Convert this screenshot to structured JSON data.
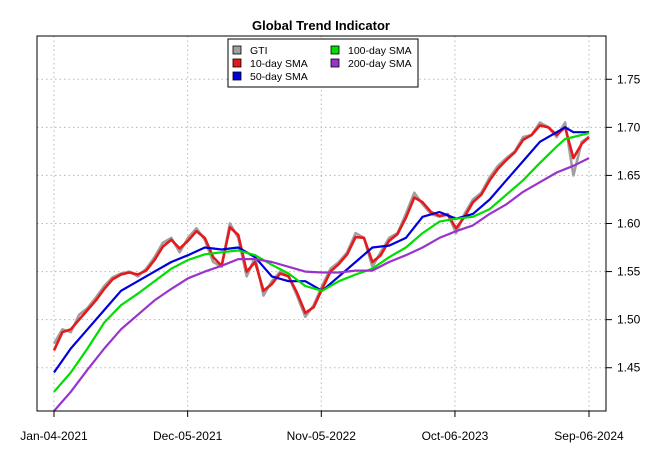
{
  "chart_data": {
    "type": "line",
    "title": "Global Trend Indicator",
    "xlabel": "",
    "ylabel": "",
    "x_ticks": [
      "Jan-04-2021",
      "Dec-05-2021",
      "Nov-05-2022",
      "Oct-06-2023",
      "Sep-06-2024"
    ],
    "x_range": [
      "Jan-04-2021",
      "Sep-06-2024"
    ],
    "y_ticks": [
      1.45,
      1.5,
      1.55,
      1.6,
      1.65,
      1.7,
      1.75
    ],
    "y_tick_labels": [
      "1.45",
      "1.50",
      "1.55",
      "1.60",
      "1.65",
      "1.70",
      "1.75"
    ],
    "ylim": [
      1.405,
      1.795
    ],
    "grid": true,
    "legend_position": "top-center",
    "series": [
      {
        "name": "GTI",
        "color": "#a0a0a0",
        "points": [
          [
            "Jan-04-2021",
            1.475
          ],
          [
            "Jan-25-2021",
            1.49
          ],
          [
            "Feb-15-2021",
            1.487
          ],
          [
            "Mar-08-2021",
            1.505
          ],
          [
            "Mar-29-2021",
            1.512
          ],
          [
            "Apr-19-2021",
            1.523
          ],
          [
            "May-10-2021",
            1.535
          ],
          [
            "May-31-2021",
            1.544
          ],
          [
            "Jun-21-2021",
            1.548
          ],
          [
            "Jul-12-2021",
            1.55
          ],
          [
            "Aug-02-2021",
            1.545
          ],
          [
            "Aug-23-2021",
            1.553
          ],
          [
            "Sep-13-2021",
            1.565
          ],
          [
            "Oct-04-2021",
            1.58
          ],
          [
            "Oct-25-2021",
            1.585
          ],
          [
            "Nov-15-2021",
            1.57
          ],
          [
            "Dec-06-2021",
            1.585
          ],
          [
            "Dec-27-2021",
            1.595
          ],
          [
            "Jan-17-2022",
            1.583
          ],
          [
            "Feb-07-2022",
            1.56
          ],
          [
            "Feb-28-2022",
            1.555
          ],
          [
            "Mar-21-2022",
            1.6
          ],
          [
            "Apr-11-2022",
            1.585
          ],
          [
            "May-02-2022",
            1.545
          ],
          [
            "May-23-2022",
            1.565
          ],
          [
            "Jun-13-2022",
            1.525
          ],
          [
            "Jul-04-2022",
            1.54
          ],
          [
            "Jul-25-2022",
            1.55
          ],
          [
            "Aug-15-2022",
            1.545
          ],
          [
            "Sep-05-2022",
            1.525
          ],
          [
            "Sep-26-2022",
            1.503
          ],
          [
            "Oct-17-2022",
            1.515
          ],
          [
            "Nov-07-2022",
            1.535
          ],
          [
            "Nov-28-2022",
            1.553
          ],
          [
            "Dec-19-2022",
            1.56
          ],
          [
            "Jan-09-2023",
            1.57
          ],
          [
            "Jan-30-2023",
            1.59
          ],
          [
            "Feb-20-2023",
            1.585
          ],
          [
            "Mar-13-2023",
            1.555
          ],
          [
            "Apr-03-2023",
            1.57
          ],
          [
            "Apr-24-2023",
            1.585
          ],
          [
            "May-15-2023",
            1.59
          ],
          [
            "Jun-05-2023",
            1.61
          ],
          [
            "Jun-26-2023",
            1.632
          ],
          [
            "Jul-17-2023",
            1.62
          ],
          [
            "Aug-07-2023",
            1.61
          ],
          [
            "Aug-28-2023",
            1.607
          ],
          [
            "Sep-18-2023",
            1.61
          ],
          [
            "Oct-09-2023",
            1.59
          ],
          [
            "Oct-30-2023",
            1.61
          ],
          [
            "Nov-20-2023",
            1.625
          ],
          [
            "Dec-11-2023",
            1.632
          ],
          [
            "Jan-01-2024",
            1.648
          ],
          [
            "Jan-22-2024",
            1.66
          ],
          [
            "Feb-12-2024",
            1.668
          ],
          [
            "Mar-04-2024",
            1.675
          ],
          [
            "Mar-25-2024",
            1.69
          ],
          [
            "Apr-15-2024",
            1.692
          ],
          [
            "May-06-2024",
            1.705
          ],
          [
            "May-27-2024",
            1.7
          ],
          [
            "Jun-17-2024",
            1.69
          ],
          [
            "Jul-08-2024",
            1.705
          ],
          [
            "Jul-29-2024",
            1.65
          ],
          [
            "Aug-19-2024",
            1.685
          ],
          [
            "Sep-06-2024",
            1.69
          ]
        ]
      },
      {
        "name": "10-day SMA",
        "color": "#e41a1c",
        "points": [
          [
            "Jan-04-2021",
            1.468
          ],
          [
            "Jan-25-2021",
            1.487
          ],
          [
            "Feb-15-2021",
            1.49
          ],
          [
            "Mar-08-2021",
            1.5
          ],
          [
            "Mar-29-2021",
            1.51
          ],
          [
            "Apr-19-2021",
            1.52
          ],
          [
            "May-10-2021",
            1.532
          ],
          [
            "May-31-2021",
            1.542
          ],
          [
            "Jun-21-2021",
            1.547
          ],
          [
            "Jul-12-2021",
            1.549
          ],
          [
            "Aug-02-2021",
            1.547
          ],
          [
            "Aug-23-2021",
            1.551
          ],
          [
            "Sep-13-2021",
            1.562
          ],
          [
            "Oct-04-2021",
            1.576
          ],
          [
            "Oct-25-2021",
            1.583
          ],
          [
            "Nov-15-2021",
            1.574
          ],
          [
            "Dec-06-2021",
            1.582
          ],
          [
            "Dec-27-2021",
            1.592
          ],
          [
            "Jan-17-2022",
            1.585
          ],
          [
            "Feb-07-2022",
            1.565
          ],
          [
            "Feb-28-2022",
            1.556
          ],
          [
            "Mar-21-2022",
            1.596
          ],
          [
            "Apr-11-2022",
            1.588
          ],
          [
            "May-02-2022",
            1.55
          ],
          [
            "May-23-2022",
            1.56
          ],
          [
            "Jun-13-2022",
            1.53
          ],
          [
            "Jul-04-2022",
            1.537
          ],
          [
            "Jul-25-2022",
            1.548
          ],
          [
            "Aug-15-2022",
            1.545
          ],
          [
            "Sep-05-2022",
            1.528
          ],
          [
            "Sep-26-2022",
            1.507
          ],
          [
            "Oct-17-2022",
            1.513
          ],
          [
            "Nov-07-2022",
            1.532
          ],
          [
            "Nov-28-2022",
            1.55
          ],
          [
            "Dec-19-2022",
            1.558
          ],
          [
            "Jan-09-2023",
            1.568
          ],
          [
            "Jan-30-2023",
            1.586
          ],
          [
            "Feb-20-2023",
            1.585
          ],
          [
            "Mar-13-2023",
            1.56
          ],
          [
            "Apr-03-2023",
            1.567
          ],
          [
            "Apr-24-2023",
            1.582
          ],
          [
            "May-15-2023",
            1.589
          ],
          [
            "Jun-05-2023",
            1.606
          ],
          [
            "Jun-26-2023",
            1.627
          ],
          [
            "Jul-17-2023",
            1.622
          ],
          [
            "Aug-07-2023",
            1.612
          ],
          [
            "Aug-28-2023",
            1.608
          ],
          [
            "Sep-18-2023",
            1.609
          ],
          [
            "Oct-09-2023",
            1.595
          ],
          [
            "Oct-30-2023",
            1.607
          ],
          [
            "Nov-20-2023",
            1.622
          ],
          [
            "Dec-11-2023",
            1.63
          ],
          [
            "Jan-01-2024",
            1.645
          ],
          [
            "Jan-22-2024",
            1.657
          ],
          [
            "Feb-12-2024",
            1.666
          ],
          [
            "Mar-04-2024",
            1.674
          ],
          [
            "Mar-25-2024",
            1.687
          ],
          [
            "Apr-15-2024",
            1.692
          ],
          [
            "May-06-2024",
            1.702
          ],
          [
            "May-27-2024",
            1.7
          ],
          [
            "Jun-17-2024",
            1.692
          ],
          [
            "Jul-08-2024",
            1.7
          ],
          [
            "Jul-29-2024",
            1.668
          ],
          [
            "Aug-19-2024",
            1.683
          ],
          [
            "Sep-06-2024",
            1.69
          ]
        ]
      },
      {
        "name": "50-day SMA",
        "color": "#0000dd",
        "points": [
          [
            "Jan-04-2021",
            1.445
          ],
          [
            "Feb-15-2021",
            1.47
          ],
          [
            "Mar-29-2021",
            1.49
          ],
          [
            "May-10-2021",
            1.51
          ],
          [
            "Jun-21-2021",
            1.53
          ],
          [
            "Aug-02-2021",
            1.54
          ],
          [
            "Sep-13-2021",
            1.55
          ],
          [
            "Oct-25-2021",
            1.56
          ],
          [
            "Dec-06-2021",
            1.567
          ],
          [
            "Jan-17-2022",
            1.575
          ],
          [
            "Feb-28-2022",
            1.573
          ],
          [
            "Apr-11-2022",
            1.575
          ],
          [
            "May-23-2022",
            1.565
          ],
          [
            "Jul-04-2022",
            1.545
          ],
          [
            "Aug-15-2022",
            1.54
          ],
          [
            "Sep-26-2022",
            1.54
          ],
          [
            "Nov-07-2022",
            1.53
          ],
          [
            "Dec-19-2022",
            1.545
          ],
          [
            "Jan-30-2023",
            1.56
          ],
          [
            "Mar-13-2023",
            1.575
          ],
          [
            "Apr-24-2023",
            1.577
          ],
          [
            "Jun-05-2023",
            1.585
          ],
          [
            "Jul-17-2023",
            1.607
          ],
          [
            "Aug-28-2023",
            1.612
          ],
          [
            "Oct-09-2023",
            1.605
          ],
          [
            "Nov-20-2023",
            1.61
          ],
          [
            "Jan-01-2024",
            1.625
          ],
          [
            "Feb-12-2024",
            1.645
          ],
          [
            "Mar-25-2024",
            1.665
          ],
          [
            "May-06-2024",
            1.685
          ],
          [
            "Jun-17-2024",
            1.695
          ],
          [
            "Jul-08-2024",
            1.7
          ],
          [
            "Jul-29-2024",
            1.695
          ],
          [
            "Sep-06-2024",
            1.695
          ]
        ]
      },
      {
        "name": "100-day SMA",
        "color": "#00dd00",
        "points": [
          [
            "Jan-04-2021",
            1.425
          ],
          [
            "Feb-15-2021",
            1.445
          ],
          [
            "Mar-29-2021",
            1.47
          ],
          [
            "May-10-2021",
            1.497
          ],
          [
            "Jun-21-2021",
            1.515
          ],
          [
            "Aug-02-2021",
            1.527
          ],
          [
            "Sep-13-2021",
            1.54
          ],
          [
            "Oct-25-2021",
            1.553
          ],
          [
            "Dec-06-2021",
            1.562
          ],
          [
            "Jan-17-2022",
            1.568
          ],
          [
            "Feb-28-2022",
            1.57
          ],
          [
            "Apr-11-2022",
            1.572
          ],
          [
            "May-23-2022",
            1.567
          ],
          [
            "Jul-04-2022",
            1.557
          ],
          [
            "Aug-15-2022",
            1.548
          ],
          [
            "Sep-26-2022",
            1.535
          ],
          [
            "Nov-07-2022",
            1.53
          ],
          [
            "Dec-19-2022",
            1.54
          ],
          [
            "Jan-30-2023",
            1.547
          ],
          [
            "Mar-13-2023",
            1.553
          ],
          [
            "Apr-24-2023",
            1.565
          ],
          [
            "Jun-05-2023",
            1.575
          ],
          [
            "Jul-17-2023",
            1.59
          ],
          [
            "Aug-28-2023",
            1.602
          ],
          [
            "Oct-09-2023",
            1.605
          ],
          [
            "Nov-20-2023",
            1.607
          ],
          [
            "Jan-01-2024",
            1.615
          ],
          [
            "Feb-12-2024",
            1.63
          ],
          [
            "Mar-25-2024",
            1.645
          ],
          [
            "May-06-2024",
            1.663
          ],
          [
            "Jun-17-2024",
            1.68
          ],
          [
            "Jul-08-2024",
            1.688
          ],
          [
            "Jul-29-2024",
            1.69
          ],
          [
            "Sep-06-2024",
            1.694
          ]
        ]
      },
      {
        "name": "200-day SMA",
        "color": "#9933cc",
        "points": [
          [
            "Jan-04-2021",
            1.405
          ],
          [
            "Feb-15-2021",
            1.425
          ],
          [
            "Mar-29-2021",
            1.448
          ],
          [
            "May-10-2021",
            1.47
          ],
          [
            "Jun-21-2021",
            1.49
          ],
          [
            "Aug-02-2021",
            1.505
          ],
          [
            "Sep-13-2021",
            1.52
          ],
          [
            "Oct-25-2021",
            1.532
          ],
          [
            "Dec-06-2021",
            1.543
          ],
          [
            "Jan-17-2022",
            1.55
          ],
          [
            "Feb-28-2022",
            1.556
          ],
          [
            "Apr-11-2022",
            1.563
          ],
          [
            "May-23-2022",
            1.563
          ],
          [
            "Jul-04-2022",
            1.56
          ],
          [
            "Aug-15-2022",
            1.555
          ],
          [
            "Sep-26-2022",
            1.55
          ],
          [
            "Nov-07-2022",
            1.549
          ],
          [
            "Dec-19-2022",
            1.549
          ],
          [
            "Jan-30-2023",
            1.551
          ],
          [
            "Mar-13-2023",
            1.551
          ],
          [
            "Apr-24-2023",
            1.56
          ],
          [
            "Jun-05-2023",
            1.567
          ],
          [
            "Jul-17-2023",
            1.575
          ],
          [
            "Aug-28-2023",
            1.585
          ],
          [
            "Oct-09-2023",
            1.592
          ],
          [
            "Nov-20-2023",
            1.598
          ],
          [
            "Jan-01-2024",
            1.61
          ],
          [
            "Feb-12-2024",
            1.62
          ],
          [
            "Mar-25-2024",
            1.633
          ],
          [
            "May-06-2024",
            1.643
          ],
          [
            "Jun-17-2024",
            1.653
          ],
          [
            "Jul-29-2024",
            1.66
          ],
          [
            "Sep-06-2024",
            1.668
          ]
        ]
      }
    ]
  }
}
